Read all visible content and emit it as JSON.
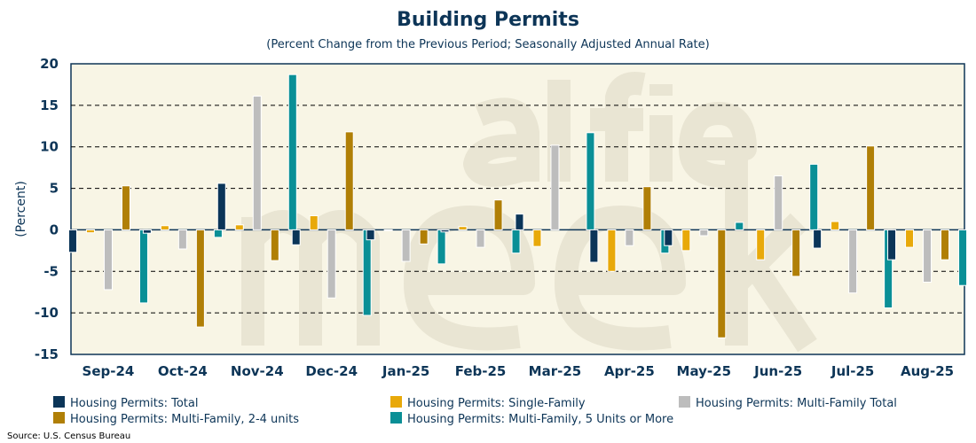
{
  "chart_data": {
    "type": "bar",
    "title": "Building Permits",
    "subtitle": "(Percent Change from the Previous Period; Seasonally Adjusted Annual Rate)",
    "ylabel": "(Percent)",
    "xlabel": "",
    "ylim": [
      -15,
      20
    ],
    "yticks": [
      20,
      15,
      10,
      5,
      0,
      -5,
      -10,
      -15
    ],
    "grid": true,
    "legend_position": "bottom",
    "categories": [
      "Sep-24",
      "Oct-24",
      "Nov-24",
      "Dec-24",
      "Jan-25",
      "Feb-25",
      "Mar-25",
      "Apr-25",
      "May-25",
      "Jun-25",
      "Jul-25",
      "Aug-25"
    ],
    "series": [
      {
        "name": "Housing Permits: Total",
        "color": "#0b3558",
        "values": [
          -2.7,
          -0.4,
          5.6,
          -1.8,
          -1.2,
          -0.25,
          1.9,
          -3.9,
          -1.9,
          0,
          -2.2,
          -3.6
        ]
      },
      {
        "name": "Housing Permits: Single-Family",
        "color": "#e8a90a",
        "values": [
          -0.35,
          0.5,
          0.6,
          1.7,
          -0.1,
          0.4,
          -2.0,
          -5.0,
          -2.5,
          -3.6,
          1.0,
          -2.1
        ]
      },
      {
        "name": "Housing Permits: Multi-Family Total",
        "color": "#bdbdbd",
        "values": [
          -7.2,
          -2.3,
          16.1,
          -8.2,
          -3.8,
          -2.1,
          10.2,
          -1.9,
          -0.7,
          6.5,
          -7.6,
          -6.3
        ]
      },
      {
        "name": "Housing Permits: Multi-Family, 2-4 units",
        "color": "#b07f06",
        "values": [
          5.3,
          -11.7,
          -3.7,
          11.8,
          -1.7,
          3.6,
          0,
          5.2,
          -13.0,
          -5.6,
          10.1,
          -3.6
        ]
      },
      {
        "name": "Housing Permits: Multi-Family, 5 Units or More",
        "color": "#0a8f96",
        "values": [
          -8.8,
          -0.9,
          18.7,
          -10.3,
          -4.1,
          -2.8,
          11.7,
          -2.8,
          0.9,
          7.9,
          -9.4,
          -6.7
        ]
      }
    ],
    "source": "Source: U.S. Census Bureau",
    "watermark": "alfie meek"
  },
  "colors": {
    "plot_bg": "#f8f5e5",
    "axis": "#0d3557"
  }
}
